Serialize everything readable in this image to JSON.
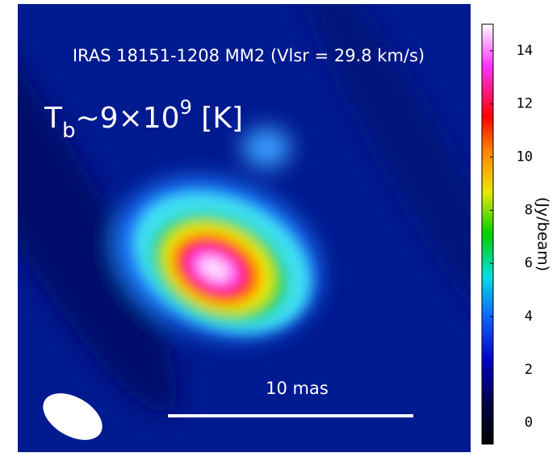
{
  "chart_data": {
    "type": "image",
    "title": "IRAS 18151-1208 MM2 (Vlsr = 29.8 km/s)",
    "annotation": {
      "base": "T",
      "sub": "b",
      "mid": "~9×10",
      "sup": "9",
      "tail": " [K]"
    },
    "scale_bar_label": "10 mas",
    "colorbar_label": "(Jy/beam)",
    "clim": [
      -0.8,
      15
    ],
    "cticks": [
      0,
      2,
      4,
      6,
      8,
      10,
      12,
      14
    ]
  }
}
